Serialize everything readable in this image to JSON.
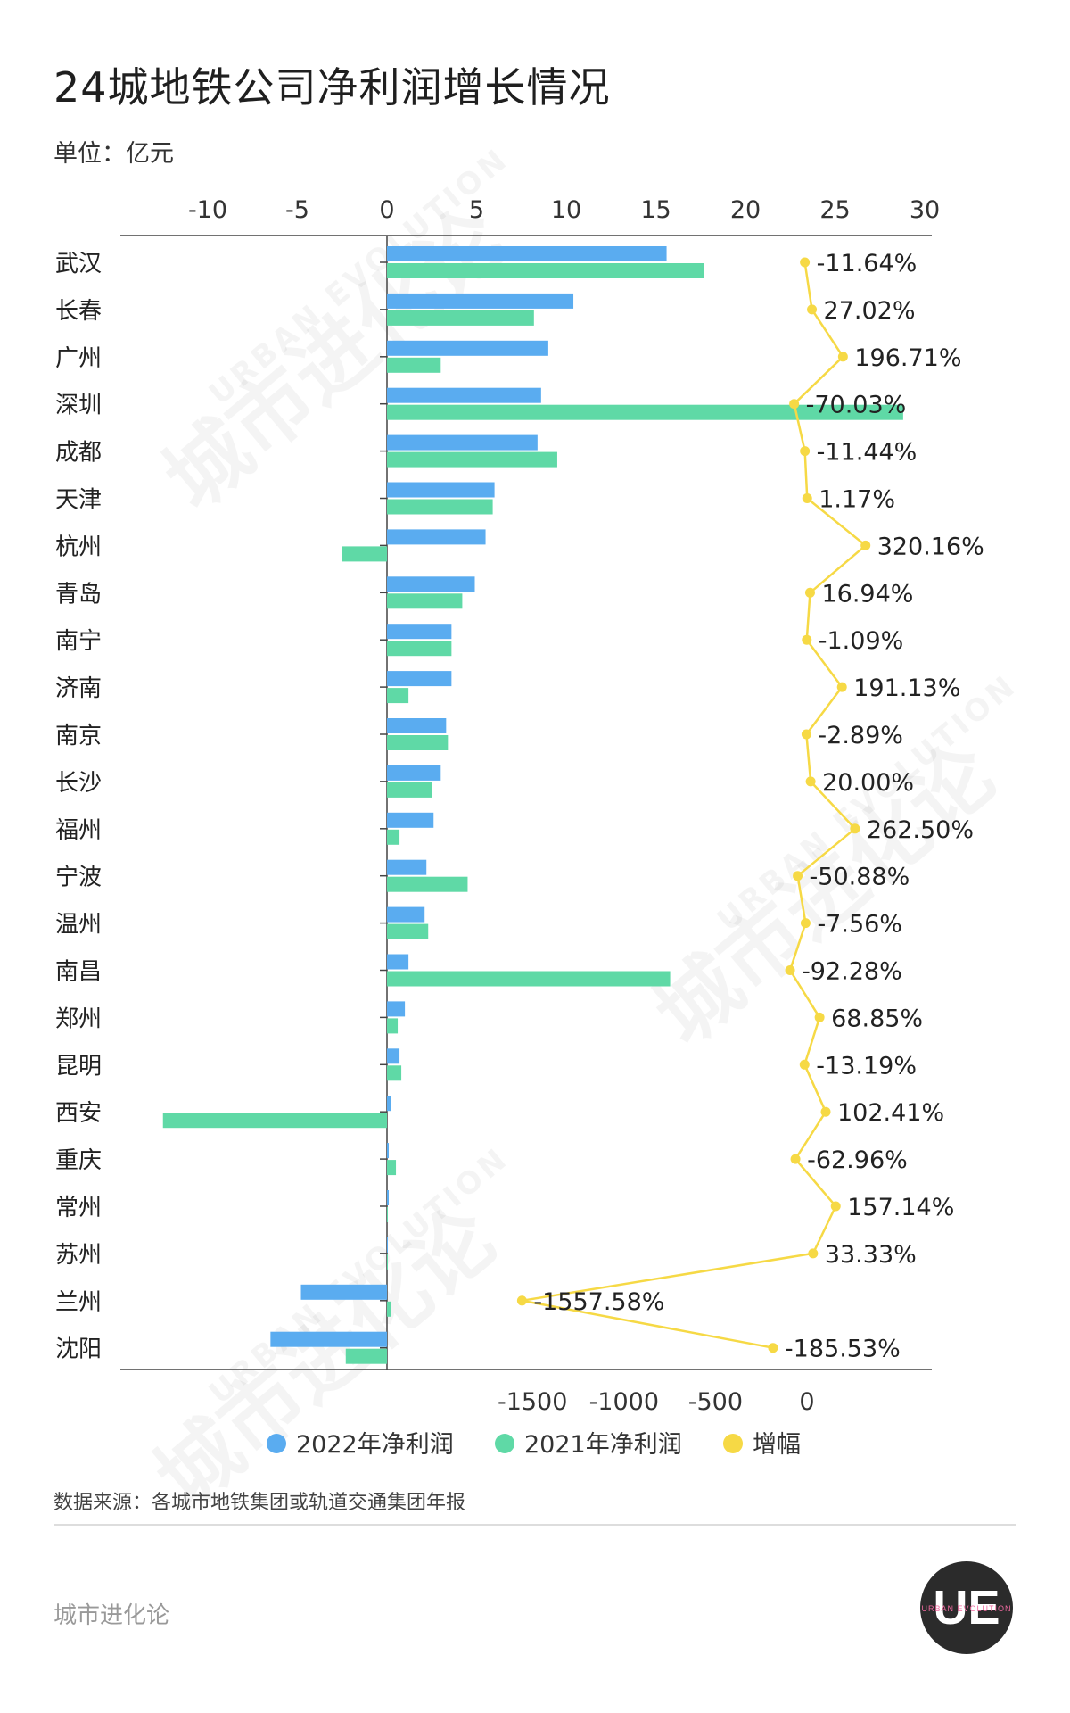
{
  "title": "24城地铁公司净利润增长情况",
  "unit_label": "单位：亿元",
  "source": "数据来源：各城市地铁集团或轨道交通集团年报",
  "brand": "城市进化论",
  "watermark": {
    "cn": "城市进化论",
    "en": "URBAN EVOLUTION"
  },
  "logo": {
    "text": "UE",
    "sub": "URBAN EVOLUTION"
  },
  "colors": {
    "series_2022": "#5aacf0",
    "series_2021": "#5fd9a6",
    "growth": "#f6d945",
    "axis": "#444444"
  },
  "chart_data": {
    "type": "bar",
    "orientation": "horizontal",
    "title": "24城地铁公司净利润增长情况",
    "ylabel": "单位：亿元",
    "categories": [
      "武汉",
      "长春",
      "广州",
      "深圳",
      "成都",
      "天津",
      "杭州",
      "青岛",
      "南宁",
      "济南",
      "南京",
      "长沙",
      "福州",
      "宁波",
      "温州",
      "南昌",
      "郑州",
      "昆明",
      "西安",
      "重庆",
      "常州",
      "苏州",
      "兰州",
      "沈阳"
    ],
    "top_axis": {
      "range": [
        -15,
        30
      ],
      "ticks": [
        -10,
        -5,
        0,
        5,
        10,
        15,
        20,
        25,
        30
      ]
    },
    "bottom_axis": {
      "range": [
        -1900,
        250
      ],
      "ticks": [
        -1500,
        -1000,
        -500,
        0
      ]
    },
    "series": [
      {
        "name": "2022年净利润",
        "axis": "top",
        "values": [
          15.6,
          10.4,
          9.0,
          8.6,
          8.4,
          6.0,
          5.5,
          4.9,
          3.6,
          3.6,
          3.3,
          3.0,
          2.6,
          2.2,
          2.1,
          1.2,
          1.0,
          0.7,
          0.2,
          0.1,
          0.1,
          0.05,
          -4.8,
          -6.5
        ]
      },
      {
        "name": "2021年净利润",
        "axis": "top",
        "values": [
          17.7,
          8.2,
          3.0,
          28.8,
          9.5,
          5.9,
          -2.5,
          4.2,
          3.6,
          1.2,
          3.4,
          2.5,
          0.7,
          4.5,
          2.3,
          15.8,
          0.6,
          0.8,
          -12.5,
          0.5,
          0.05,
          0.05,
          0.2,
          -2.3
        ]
      },
      {
        "name": "增幅",
        "axis": "bottom",
        "unit": "%",
        "type": "line",
        "values": [
          -11.64,
          27.02,
          196.71,
          -70.03,
          -11.44,
          1.17,
          320.16,
          16.94,
          -1.09,
          191.13,
          -2.89,
          20.0,
          262.5,
          -50.88,
          -7.56,
          -92.28,
          68.85,
          -13.19,
          102.41,
          -62.96,
          157.14,
          33.33,
          -1557.58,
          -185.53
        ],
        "labels": [
          "-11.64%",
          "27.02%",
          "196.71%",
          "-70.03%",
          "-11.44%",
          "1.17%",
          "320.16%",
          "16.94%",
          "-1.09%",
          "191.13%",
          "-2.89%",
          "20.00%",
          "262.50%",
          "-50.88%",
          "-7.56%",
          "-92.28%",
          "68.85%",
          "-13.19%",
          "102.41%",
          "-62.96%",
          "157.14%",
          "33.33%",
          "-1557.58%",
          "-185.53%"
        ]
      }
    ],
    "legend": {
      "placement": "bottom",
      "items": [
        "2022年净利润",
        "2021年净利润",
        "增幅"
      ]
    },
    "grid": false
  }
}
